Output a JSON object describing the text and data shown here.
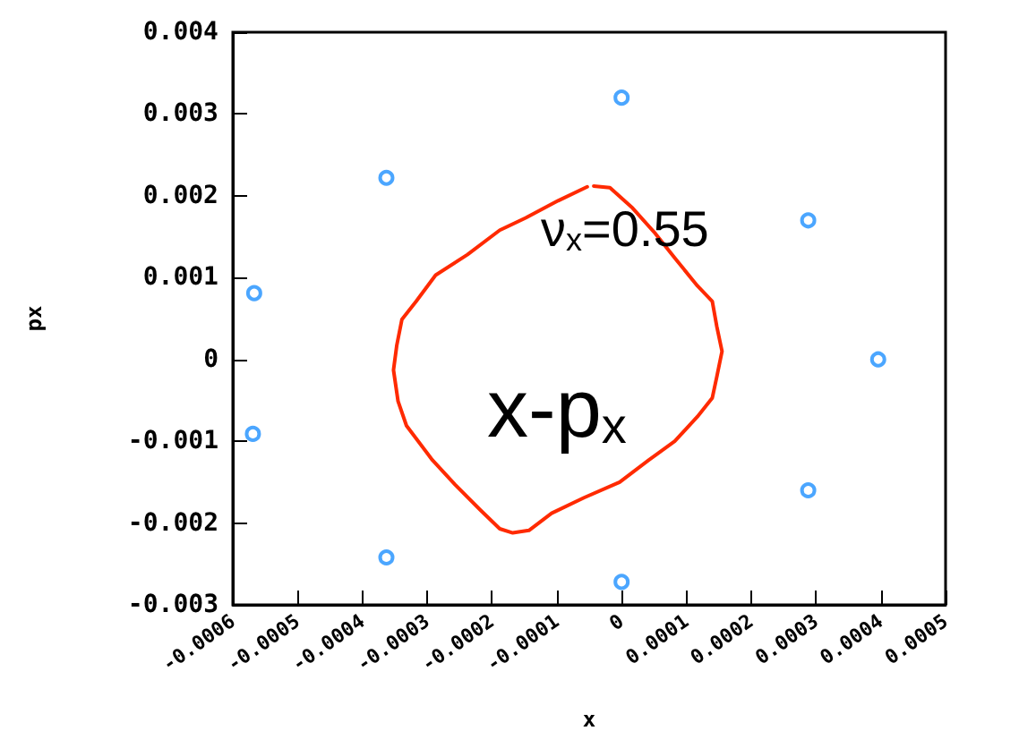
{
  "chart_data": {
    "type": "line",
    "xlabel": "x",
    "ylabel": "px",
    "xlim": [
      -0.0006,
      0.0005
    ],
    "xticks": [
      -0.0006,
      -0.0005,
      -0.0004,
      -0.0003,
      -0.0002,
      -0.0001,
      0,
      0.0001,
      0.0002,
      0.0003,
      0.0004,
      0.0005
    ],
    "ylim": [
      -0.003,
      0.004
    ],
    "yticks": [
      -0.003,
      -0.002,
      -0.001,
      0,
      0.001,
      0.002,
      0.003,
      0.004
    ],
    "grid": false,
    "annotations": [
      "ν$_{x}$=0.55",
      "x-p$_{x}$"
    ],
    "series": [
      {
        "type": "line",
        "color": "#ff2a00",
        "marker": "none",
        "line_style": "solid",
        "x": [
          -4.3e-05,
          -1.8e-05,
          1.7e-05,
          5.2e-05,
          8.2e-05,
          0.000117,
          0.00014,
          0.000147,
          0.000155,
          0.000147,
          0.00014,
          0.000117,
          8.2e-05,
          4.2e-05,
          -3e-06,
          -5.8e-05,
          -0.000108,
          -0.000143,
          -0.000168,
          -0.000188,
          -0.000218,
          -0.000257,
          -0.000292,
          -0.000332,
          -0.000345,
          -0.000352,
          -0.000347,
          -0.000339,
          -0.000317,
          -0.000287,
          -0.000238,
          -0.000188,
          -0.000148,
          -9.8e-05,
          -5.3e-05
        ],
        "values": [
          0.00212,
          0.0021,
          0.00185,
          0.00154,
          0.00124,
          0.0009,
          0.00071,
          0.0004,
          0.0001,
          -0.00021,
          -0.00047,
          -0.0007,
          -0.001,
          -0.00123,
          -0.0015,
          -0.00169,
          -0.00188,
          -0.00209,
          -0.00212,
          -0.00207,
          -0.00184,
          -0.00153,
          -0.00123,
          -0.00081,
          -0.00051,
          -0.00013,
          0.00017,
          0.00049,
          0.00071,
          0.00103,
          0.00128,
          0.00158,
          0.00173,
          0.00194,
          0.00211
        ]
      },
      {
        "type": "scatter",
        "color": "#1e90ff",
        "marker": "circle",
        "x": [
          0,
          -0.000363,
          -0.000567,
          -0.000569,
          -0.000363,
          0,
          0.000288,
          0.000396,
          0.000288
        ],
        "values": [
          0.0032,
          0.00222,
          0.00081,
          -0.00091,
          -0.00242,
          -0.00272,
          -0.0016,
          0,
          0.0017
        ]
      }
    ]
  }
}
